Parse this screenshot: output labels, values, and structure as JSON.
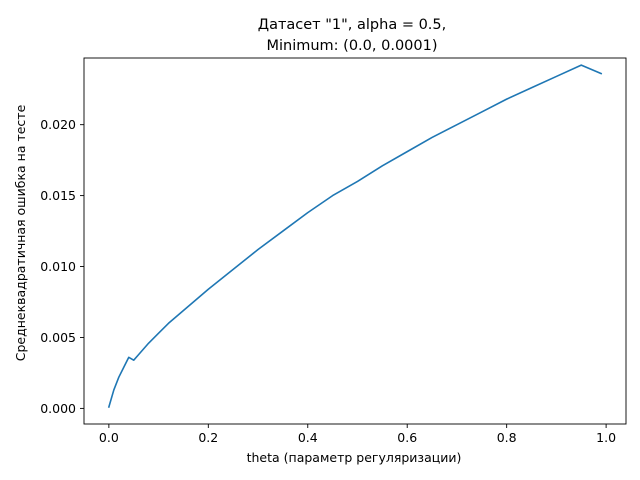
{
  "chart_data": {
    "type": "line",
    "title": "Датасет \"1\", alpha = 0.5,",
    "subtitle": "Minimum: (0.0, 0.0001)",
    "xlabel": "theta (параметр регуляризации)",
    "ylabel": "Среднеквадратичная ошибка на тесте",
    "xlim": [
      -0.05,
      1.04
    ],
    "ylim": [
      -0.0011,
      0.0247
    ],
    "xticks": [
      0.0,
      0.2,
      0.4,
      0.6,
      0.8,
      1.0
    ],
    "xtick_labels": [
      "0.0",
      "0.2",
      "0.4",
      "0.6",
      "0.8",
      "1.0"
    ],
    "yticks": [
      0.0,
      0.005,
      0.01,
      0.015,
      0.02
    ],
    "ytick_labels": [
      "0.000",
      "0.005",
      "0.010",
      "0.015",
      "0.020"
    ],
    "grid": false,
    "legend": "none",
    "series": [
      {
        "color": "#1f77b4",
        "x": [
          0.0,
          0.01,
          0.02,
          0.03,
          0.04,
          0.05,
          0.06,
          0.08,
          0.1,
          0.12,
          0.15,
          0.18,
          0.2,
          0.25,
          0.3,
          0.35,
          0.4,
          0.45,
          0.5,
          0.55,
          0.6,
          0.65,
          0.7,
          0.75,
          0.8,
          0.85,
          0.9,
          0.95,
          0.99
        ],
        "y": [
          0.0001,
          0.0013,
          0.0022,
          0.0029,
          0.0036,
          0.0034,
          0.0038,
          0.0046,
          0.0053,
          0.006,
          0.0069,
          0.0078,
          0.0084,
          0.0098,
          0.0112,
          0.0125,
          0.0138,
          0.015,
          0.016,
          0.0171,
          0.0181,
          0.0191,
          0.02,
          0.0209,
          0.0218,
          0.0226,
          0.0234,
          0.0242,
          0.0236
        ]
      }
    ]
  }
}
